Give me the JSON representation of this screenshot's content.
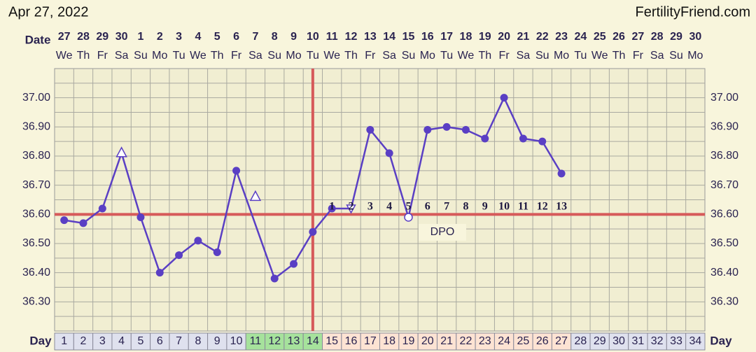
{
  "chart_data": {
    "type": "line",
    "title": "Apr 27, 2022",
    "source": "FertilityFriend.com",
    "date_label": "Date",
    "day_label": "Day",
    "dates": [
      "27",
      "28",
      "29",
      "30",
      "1",
      "2",
      "3",
      "4",
      "5",
      "6",
      "7",
      "8",
      "9",
      "10",
      "11",
      "12",
      "13",
      "14",
      "15",
      "16",
      "17",
      "18",
      "19",
      "20",
      "21",
      "22",
      "23",
      "24",
      "25",
      "26",
      "27",
      "28",
      "29",
      "30"
    ],
    "weekdays": [
      "We",
      "Th",
      "Fr",
      "Sa",
      "Su",
      "Mo",
      "Tu",
      "We",
      "Th",
      "Fr",
      "Sa",
      "Su",
      "Mo",
      "Tu",
      "We",
      "Th",
      "Fr",
      "Sa",
      "Su",
      "Mo",
      "Tu",
      "We",
      "Th",
      "Fr",
      "Sa",
      "Su",
      "Mo",
      "Tu",
      "We",
      "Th",
      "Fr",
      "Sa",
      "Su",
      "Mo"
    ],
    "categories": [
      "1",
      "2",
      "3",
      "4",
      "5",
      "6",
      "7",
      "8",
      "9",
      "10",
      "11",
      "12",
      "13",
      "14",
      "15",
      "16",
      "17",
      "18",
      "19",
      "20",
      "21",
      "22",
      "23",
      "24",
      "25",
      "26",
      "27",
      "28",
      "29",
      "30",
      "31",
      "32",
      "33",
      "34"
    ],
    "day_colors": [
      "#dfe1ee",
      "#dfe1ee",
      "#dfe1ee",
      "#dfe1ee",
      "#dfe1ee",
      "#dfe1ee",
      "#dfe1ee",
      "#dfe1ee",
      "#dfe1ee",
      "#dfe1ee",
      "#a6e29c",
      "#a6e29c",
      "#a6e29c",
      "#a6e29c",
      "#fde3d3",
      "#fde3d3",
      "#fde3d3",
      "#fde3d3",
      "#fde3d3",
      "#fde3d3",
      "#fde3d3",
      "#fde3d3",
      "#fde3d3",
      "#fde3d3",
      "#fde3d3",
      "#fde3d3",
      "#fde3d3",
      "#dfe1ee",
      "#dfe1ee",
      "#dfe1ee",
      "#dfe1ee",
      "#dfe1ee",
      "#dfe1ee",
      "#dfe1ee"
    ],
    "values": [
      36.58,
      36.57,
      36.62,
      36.81,
      36.59,
      36.4,
      36.46,
      36.51,
      36.47,
      36.75,
      36.66,
      36.38,
      36.43,
      36.54,
      36.62,
      36.62,
      36.89,
      36.81,
      36.59,
      36.89,
      36.9,
      36.89,
      36.86,
      37.0,
      36.86,
      36.85,
      36.74,
      null,
      null,
      null,
      null,
      null,
      null,
      null
    ],
    "markers": [
      "dot",
      "dot",
      "dot",
      "open-triangle",
      "dot",
      "dot",
      "dot",
      "dot",
      "dot",
      "dot",
      "discarded-triangle",
      "dot",
      "dot",
      "dot",
      "dot",
      "open-triangle-down",
      "dot",
      "dot",
      "open-circle",
      "dot",
      "dot",
      "dot",
      "dot",
      "dot",
      "dot",
      "dot",
      "dot",
      null,
      null,
      null,
      null,
      null,
      null,
      null
    ],
    "color": "#5a3fc4",
    "dpo_labels": [
      null,
      null,
      null,
      null,
      null,
      null,
      null,
      null,
      null,
      null,
      null,
      null,
      null,
      null,
      "1",
      "2",
      "3",
      "4",
      "5",
      "6",
      "7",
      "8",
      "9",
      "10",
      "11",
      "12",
      "13",
      null,
      null,
      null,
      null,
      null,
      null,
      null
    ],
    "dpo_title": "DPO",
    "coverline": 36.6,
    "ovulation_day": "14",
    "line_color": "#d65a5a",
    "ylim": [
      36.2,
      37.1
    ],
    "yticks": [
      {
        "value": 36.3,
        "label": "36.30"
      },
      {
        "value": 36.4,
        "label": "36.40"
      },
      {
        "value": 36.5,
        "label": "36.50"
      },
      {
        "value": 36.6,
        "label": "36.60"
      },
      {
        "value": 36.7,
        "label": "36.70"
      },
      {
        "value": 36.8,
        "label": "36.80"
      },
      {
        "value": 36.9,
        "label": "36.90"
      },
      {
        "value": 37.0,
        "label": "37.00"
      }
    ],
    "minor_yticks": [
      36.25,
      36.35,
      36.45,
      36.55,
      36.65,
      36.75,
      36.85,
      36.95,
      37.05
    ],
    "grid": true
  }
}
